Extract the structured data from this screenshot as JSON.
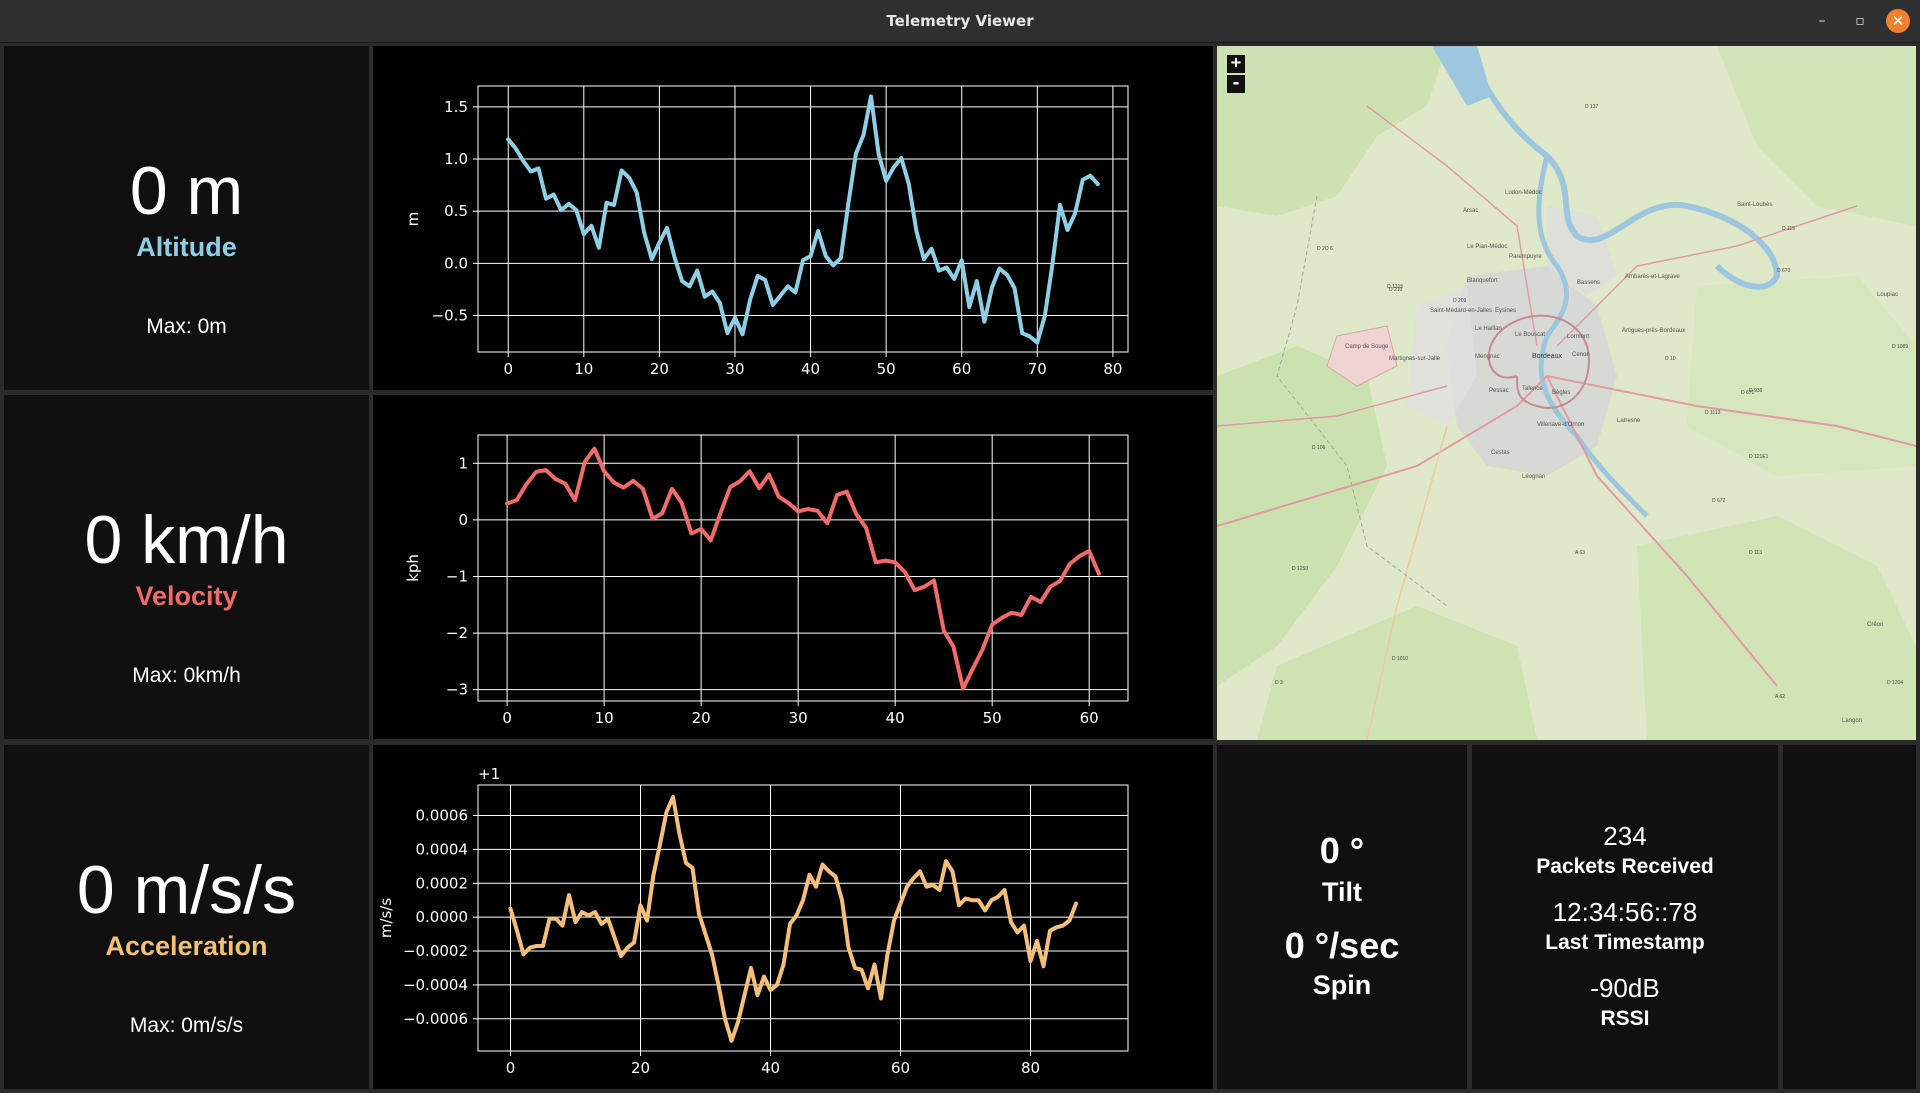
{
  "window": {
    "title": "Telemetry Viewer",
    "minimize_glyph": "–",
    "maximize_glyph": "▫",
    "close_glyph": "✕"
  },
  "altitude": {
    "value": "0 m",
    "label": "Altitude",
    "max": "Max: 0m",
    "color": "#8ecfe6"
  },
  "velocity": {
    "value": "0 km/h",
    "label": "Velocity",
    "max": "Max: 0km/h",
    "color": "#f06b6b"
  },
  "acceleration": {
    "value": "0 m/s/s",
    "label": "Acceleration",
    "max": "Max: 0m/s/s",
    "color": "#f4bf7a"
  },
  "orientation": {
    "tilt_value": "0 °",
    "tilt_label": "Tilt",
    "spin_value": "0 °/sec",
    "spin_label": "Spin"
  },
  "link": {
    "packets_value": "234",
    "packets_label": "Packets Received",
    "timestamp_value": "12:34:56::78",
    "timestamp_label": "Last Timestamp",
    "rssi_value": "-90dB",
    "rssi_label": "RSSI"
  },
  "map": {
    "zoom_in": "+",
    "zoom_out": "-",
    "place_labels": [
      "Bordeaux",
      "Le Bouscat",
      "Eysines",
      "Blanquefort",
      "Mérignac",
      "Pessac",
      "Talence",
      "Bègles",
      "Cenon",
      "Lormont",
      "Artigues-près-Bordeaux",
      "Bassens",
      "Ambarès-et-Lagrave",
      "Le Pian-Médoc",
      "Parempuyre",
      "Ludon-Médoc",
      "Arsac",
      "Saint-Médard-en-Jalles",
      "Le Haillan",
      "Martignas-sur-Jalle",
      "Villenave-d'Ornon",
      "Cestas",
      "Léognan",
      "Camp de Souge",
      "Latresne",
      "Langon",
      "Loupiac",
      "Créon",
      "Saint-Loubès"
    ],
    "road_labels": [
      "D 2",
      "D 209",
      "D 210",
      "D 1215",
      "D 6",
      "D 106",
      "D 1250",
      "D 1010",
      "D 3",
      "D 113",
      "D 1113",
      "D 936",
      "D 671",
      "D 670",
      "D 10",
      "D 115",
      "D 1089",
      "A 63",
      "A 62",
      "D 672",
      "D 1204",
      "D 121E1",
      "D 137"
    ]
  },
  "charts": [
    {
      "key": "alt",
      "ylabel": "m",
      "color": "#8ecfe6",
      "offset_text": "",
      "xlim": [
        -4,
        82
      ],
      "ylim": [
        -0.85,
        1.7
      ],
      "xticks": [
        0,
        10,
        20,
        30,
        40,
        50,
        60,
        70,
        80
      ],
      "xtick_labels": [
        "0",
        "10",
        "20",
        "30",
        "40",
        "50",
        "60",
        "70",
        "80"
      ],
      "yticks": [
        -0.5,
        0.0,
        0.5,
        1.0,
        1.5
      ],
      "ytick_labels": [
        "−0.5",
        "0.0",
        "0.5",
        "1.0",
        "1.5"
      ]
    },
    {
      "key": "vel",
      "ylabel": "kph",
      "color": "#f06b6b",
      "offset_text": "",
      "xlim": [
        -3,
        64
      ],
      "ylim": [
        -3.2,
        1.5
      ],
      "xticks": [
        0,
        10,
        20,
        30,
        40,
        50,
        60
      ],
      "xtick_labels": [
        "0",
        "10",
        "20",
        "30",
        "40",
        "50",
        "60"
      ],
      "yticks": [
        -3,
        -2,
        -1,
        0,
        1
      ],
      "ytick_labels": [
        "−3",
        "−2",
        "−1",
        "0",
        "1"
      ]
    },
    {
      "key": "acc",
      "ylabel": "m/s/s",
      "color": "#f4bf7a",
      "offset_text": "+1",
      "xlim": [
        -5,
        95
      ],
      "ylim": [
        -0.00079,
        0.00078
      ],
      "xticks": [
        0,
        20,
        40,
        60,
        80
      ],
      "xtick_labels": [
        "0",
        "20",
        "40",
        "60",
        "80"
      ],
      "yticks": [
        -0.0006,
        -0.0004,
        -0.0002,
        0.0,
        0.0002,
        0.0004,
        0.0006
      ],
      "ytick_labels": [
        "−0.0006",
        "−0.0004",
        "−0.0002",
        "0.0000",
        "0.0002",
        "0.0004",
        "0.0006"
      ]
    }
  ],
  "chart_data": [
    {
      "type": "line",
      "title": "",
      "xlabel": "",
      "ylabel": "m",
      "x_start": 0,
      "x_step": 1,
      "ylim": [
        -0.85,
        1.7
      ],
      "grid": true,
      "series": [
        {
          "values": [
            1.19,
            1.1,
            0.98,
            0.88,
            0.91,
            0.62,
            0.66,
            0.51,
            0.57,
            0.51,
            0.28,
            0.36,
            0.15,
            0.58,
            0.56,
            0.89,
            0.82,
            0.68,
            0.29,
            0.04,
            0.2,
            0.34,
            0.06,
            -0.17,
            -0.22,
            -0.07,
            -0.32,
            -0.27,
            -0.38,
            -0.67,
            -0.52,
            -0.68,
            -0.35,
            -0.12,
            -0.16,
            -0.4,
            -0.31,
            -0.22,
            -0.28,
            0.03,
            0.07,
            0.31,
            0.07,
            -0.02,
            0.05,
            0.57,
            1.05,
            1.23,
            1.6,
            1.05,
            0.79,
            0.92,
            1.01,
            0.76,
            0.31,
            0.04,
            0.14,
            -0.07,
            -0.04,
            -0.15,
            0.03,
            -0.42,
            -0.17,
            -0.56,
            -0.23,
            -0.05,
            -0.11,
            -0.24,
            -0.67,
            -0.7,
            -0.76,
            -0.5,
            -0.01,
            0.56,
            0.32,
            0.48,
            0.8,
            0.84,
            0.76
          ]
        }
      ]
    },
    {
      "type": "line",
      "title": "",
      "xlabel": "",
      "ylabel": "kph",
      "x_start": 0,
      "x_step": 1,
      "ylim": [
        -3.2,
        1.5
      ],
      "grid": true,
      "series": [
        {
          "values": [
            0.29,
            0.35,
            0.63,
            0.85,
            0.88,
            0.72,
            0.64,
            0.35,
            1.02,
            1.26,
            0.86,
            0.66,
            0.57,
            0.69,
            0.55,
            0.02,
            0.12,
            0.55,
            0.3,
            -0.24,
            -0.16,
            -0.36,
            0.12,
            0.58,
            0.68,
            0.86,
            0.56,
            0.8,
            0.41,
            0.3,
            0.15,
            0.19,
            0.16,
            -0.06,
            0.44,
            0.5,
            0.1,
            -0.14,
            -0.75,
            -0.72,
            -0.75,
            -0.92,
            -1.24,
            -1.18,
            -1.07,
            -1.95,
            -2.24,
            -2.98,
            -2.63,
            -2.29,
            -1.85,
            -1.73,
            -1.64,
            -1.68,
            -1.36,
            -1.45,
            -1.18,
            -1.08,
            -0.78,
            -0.64,
            -0.55,
            -0.95
          ]
        }
      ]
    },
    {
      "type": "line",
      "title": "",
      "xlabel": "",
      "ylabel": "m/s/s",
      "y_offset": 1,
      "x_start": 0,
      "x_step": 1,
      "ylim": [
        -0.00079,
        0.00078
      ],
      "grid": true,
      "series": [
        {
          "values": [
            5e-05,
            -8e-05,
            -0.00022,
            -0.00018,
            -0.00017,
            -0.00017,
            -1e-05,
            -1e-05,
            -5e-05,
            0.00013,
            -3e-05,
            3e-05,
            1e-05,
            3e-05,
            -4e-05,
            -1e-05,
            -0.00012,
            -0.00023,
            -0.00018,
            -0.00015,
            7e-05,
            -2e-05,
            0.00025,
            0.00043,
            0.00062,
            0.00071,
            0.00049,
            0.00032,
            0.00029,
            2e-05,
            -0.0001,
            -0.00022,
            -0.0004,
            -0.0006,
            -0.00073,
            -0.00062,
            -0.00046,
            -0.0003,
            -0.00046,
            -0.00035,
            -0.00043,
            -0.0004,
            -0.00028,
            -4e-05,
            1e-05,
            0.0001,
            0.00025,
            0.00018,
            0.00031,
            0.00027,
            0.00024,
            0.0001,
            -0.00018,
            -0.0003,
            -0.00031,
            -0.00042,
            -0.00028,
            -0.00048,
            -0.00022,
            -2e-05,
            8e-05,
            0.00018,
            0.00023,
            0.00027,
            0.00018,
            0.00019,
            0.00016,
            0.00033,
            0.00027,
            7e-05,
            0.00011,
            0.0001,
            0.0001,
            4e-05,
            0.0001,
            0.00012,
            0.00016,
            -3e-05,
            -9e-05,
            -5e-05,
            -0.00026,
            -0.00014,
            -0.00029,
            -8e-05,
            -6e-05,
            -5e-05,
            -2e-05,
            8e-05
          ]
        }
      ]
    }
  ]
}
